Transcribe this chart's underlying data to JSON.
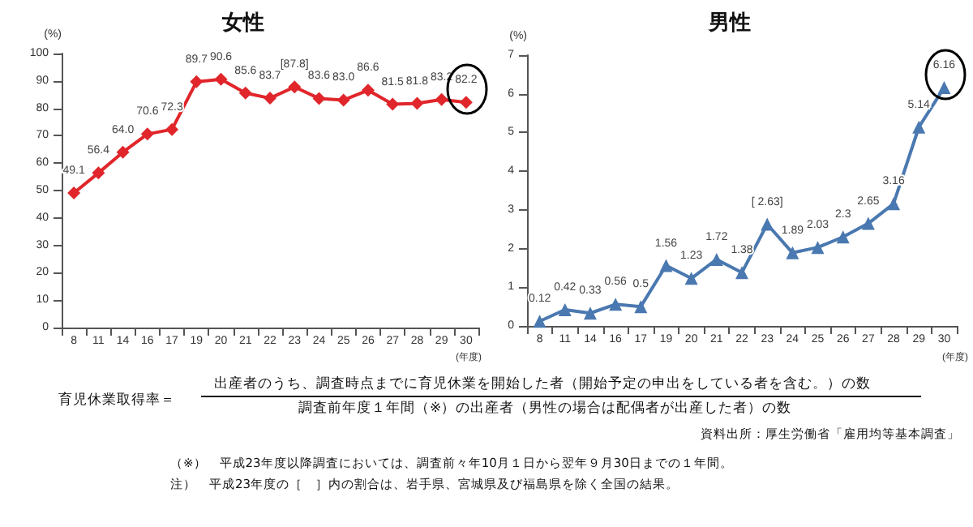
{
  "chart_data": [
    {
      "type": "line",
      "title": "女性",
      "ylabel": "(%)",
      "xlabel": "(年度)",
      "categories": [
        "8",
        "11",
        "14",
        "16",
        "17",
        "19",
        "20",
        "21",
        "22",
        "23",
        "24",
        "25",
        "26",
        "27",
        "28",
        "29",
        "30"
      ],
      "series": [
        {
          "color": "#e0262b",
          "marker": "diamond",
          "values": [
            49.1,
            56.4,
            64.0,
            70.6,
            72.3,
            89.7,
            90.6,
            85.6,
            83.7,
            87.8,
            83.6,
            83.0,
            86.6,
            81.5,
            81.8,
            83.2,
            82.2
          ],
          "value_labels": [
            "49.1",
            "56.4",
            "64.0",
            "70.6",
            "72.3",
            "89.7",
            "90.6",
            "85.6",
            "83.7",
            "[87.8]",
            "83.6",
            "83.0",
            "86.6",
            "81.5",
            "81.8",
            "83.2",
            "82.2"
          ]
        }
      ],
      "ylim": [
        0,
        100
      ],
      "yticks": [
        0,
        10,
        20,
        30,
        40,
        50,
        60,
        70,
        80,
        90,
        100
      ],
      "grid": false,
      "annotations": [
        "育児休業取得率＝",
        "出産者のうち、調査時点までに育児休業を開始した者（開始予定の申出をしている者を含む。）の数",
        "調査前年度１年間（※）の出産者（男性の場合は配偶者が出産した者）の数",
        "資料出所：厚生労働省「雇用均等基本調査」",
        "（※）　平成23年度以降調査においては、調査前々年10月１日から翌年９月30日までの１年間。",
        "注）　平成23年度の［　］内の割合は、岩手県、宮城県及び福島県を除く全国の結果。"
      ]
    },
    {
      "type": "line",
      "title": "男性",
      "ylabel": "(%)",
      "xlabel": "(年度)",
      "categories": [
        "8",
        "11",
        "14",
        "16",
        "17",
        "19",
        "20",
        "21",
        "22",
        "23",
        "24",
        "25",
        "26",
        "27",
        "28",
        "29",
        "30"
      ],
      "series": [
        {
          "color": "#4a78b0",
          "marker": "triangle",
          "values": [
            0.12,
            0.42,
            0.33,
            0.56,
            0.5,
            1.56,
            1.23,
            1.72,
            1.38,
            2.63,
            1.89,
            2.03,
            2.3,
            2.65,
            3.16,
            5.14,
            6.16
          ],
          "value_labels": [
            "0.12",
            "0.42",
            "0.33",
            "0.56",
            "0.5",
            "1.56",
            "1.23",
            "1.72",
            "1.38",
            "[ 2.63]",
            "1.89",
            "2.03",
            "2.3",
            "2.65",
            "3.16",
            "5.14",
            "6.16"
          ]
        }
      ],
      "ylim": [
        0,
        7
      ],
      "yticks": [
        0,
        1,
        2,
        3,
        4,
        5,
        6,
        7
      ],
      "grid": false
    }
  ]
}
